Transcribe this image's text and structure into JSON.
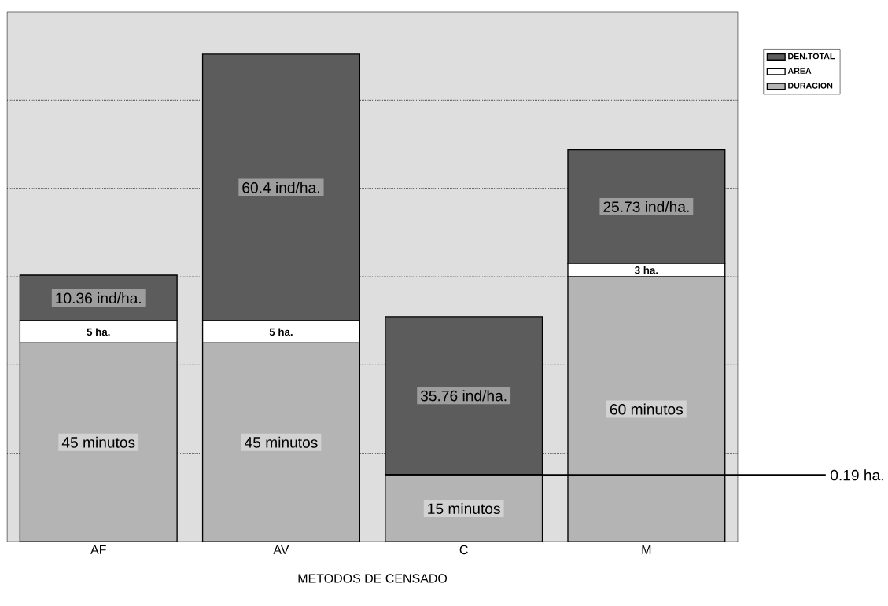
{
  "chart_data": {
    "type": "bar",
    "stacked": true,
    "xlabel": "METODOS DE CENSADO",
    "categories": [
      "AF",
      "AV",
      "C",
      "M"
    ],
    "series": [
      {
        "name": "DURACION",
        "color": "#b4b4b4",
        "values": [
          45,
          45,
          15,
          60
        ],
        "value_labels": [
          "45 minutos",
          "45 minutos",
          "15 minutos",
          "60 minutos"
        ]
      },
      {
        "name": "AREA",
        "color": "#ffffff",
        "values": [
          5,
          5,
          0.19,
          3
        ],
        "value_labels": [
          "5 ha.",
          "5 ha.",
          "0.19 ha.",
          "3 ha."
        ]
      },
      {
        "name": "DEN.TOTAL",
        "color": "#5c5c5c",
        "values": [
          10.36,
          60.4,
          35.76,
          25.73
        ],
        "value_labels": [
          "10.36 ind/ha.",
          "60.4 ind/ha.",
          "35.76 ind/ha.",
          "25.73 ind/ha."
        ]
      }
    ],
    "ylim": [
      0,
      120
    ],
    "yticks": [
      {
        "value": 20,
        "label": null
      },
      {
        "value": 40,
        "label": null
      },
      {
        "value": 60,
        "label": null
      },
      {
        "value": 80,
        "label": null
      },
      {
        "value": 100,
        "label": null
      }
    ],
    "grid": "y",
    "legend": "top right"
  }
}
